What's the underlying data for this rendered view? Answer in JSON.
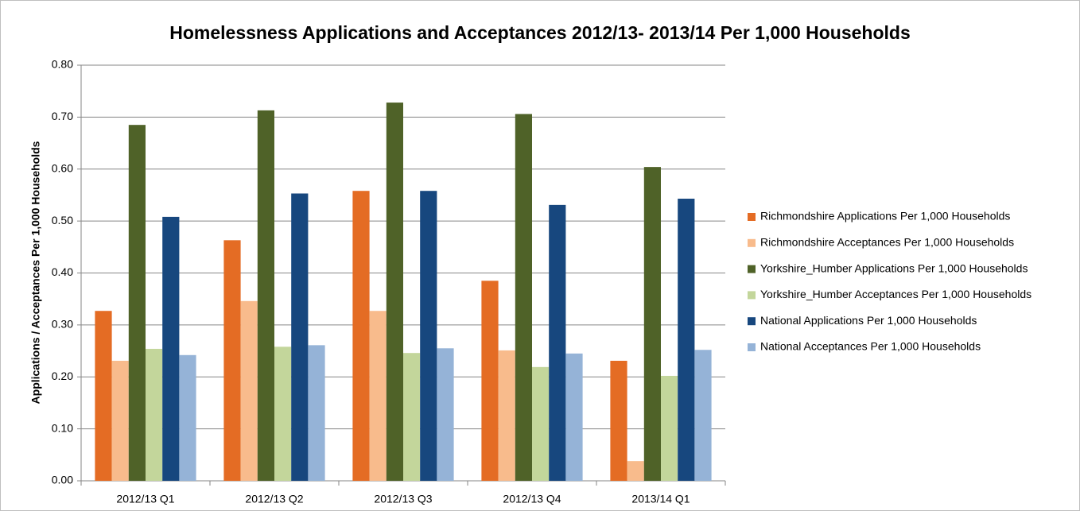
{
  "chart_data": {
    "type": "bar",
    "title": "Homelessness Applications and Acceptances 2012/13- 2013/14 Per 1,000 Households",
    "ylabel": "Applications / Acceptances Per 1,000 Households",
    "categories": [
      "2012/13 Q1",
      "2012/13 Q2",
      "2012/13 Q3",
      "2012/13 Q4",
      "2013/14 Q1"
    ],
    "series": [
      {
        "name": "Richmondshire Applications Per 1,000 Households",
        "color": "#e46c24",
        "values": [
          0.327,
          0.463,
          0.558,
          0.385,
          0.231
        ]
      },
      {
        "name": "Richmondshire Acceptances Per 1,000 Households",
        "color": "#f8bb8c",
        "values": [
          0.231,
          0.346,
          0.327,
          0.251,
          0.038
        ]
      },
      {
        "name": "Yorkshire_Humber Applications Per 1,000 Households",
        "color": "#4f6228",
        "values": [
          0.685,
          0.713,
          0.728,
          0.706,
          0.604
        ]
      },
      {
        "name": "Yorkshire_Humber Acceptances Per 1,000 Households",
        "color": "#c3d69b",
        "values": [
          0.254,
          0.258,
          0.246,
          0.219,
          0.202
        ]
      },
      {
        "name": "National Applications Per 1,000 Households",
        "color": "#17477e",
        "values": [
          0.508,
          0.553,
          0.558,
          0.531,
          0.543
        ]
      },
      {
        "name": "National Acceptances Per 1,000 Households",
        "color": "#95b3d7",
        "values": [
          0.242,
          0.261,
          0.255,
          0.245,
          0.252
        ]
      }
    ],
    "ylim": [
      0,
      0.8
    ],
    "yticks": [
      {
        "value": 0,
        "label": "0.00"
      },
      {
        "value": 0.1,
        "label": "0.10"
      },
      {
        "value": 0.2,
        "label": "0.20"
      },
      {
        "value": 0.3,
        "label": "0.30"
      },
      {
        "value": 0.4,
        "label": "0.40"
      },
      {
        "value": 0.5,
        "label": "0.50"
      },
      {
        "value": 0.6,
        "label": "0.60"
      },
      {
        "value": 0.7,
        "label": "0.70"
      },
      {
        "value": 0.8,
        "label": "0.80"
      }
    ],
    "grid": true,
    "legend": "right"
  }
}
